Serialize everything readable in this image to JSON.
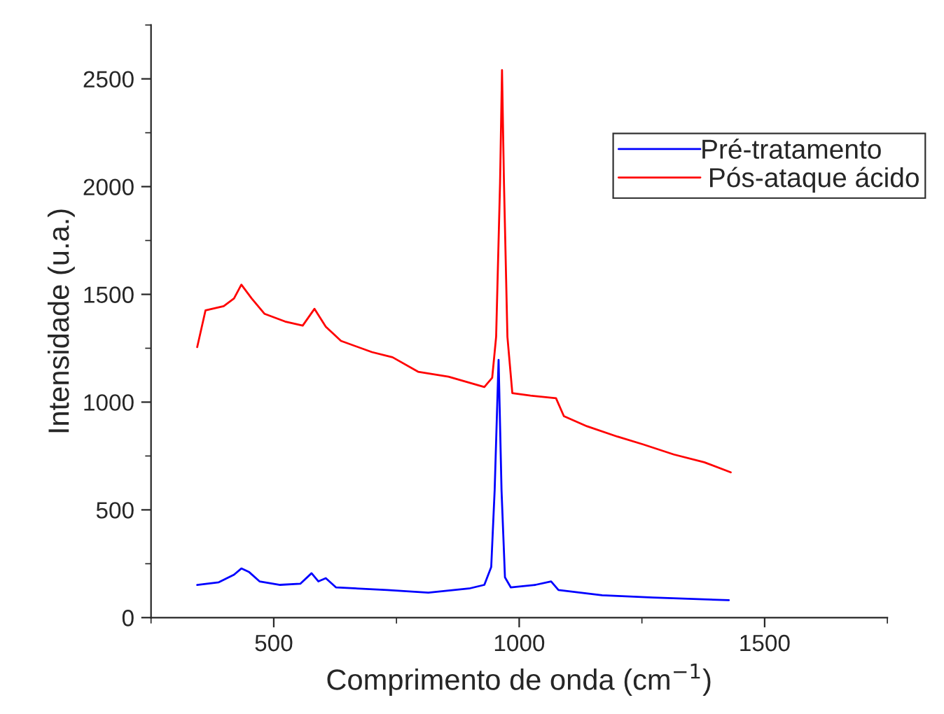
{
  "chart_data": {
    "type": "line",
    "xlabel": "Comprimento de onda (cm$^{−1}$)",
    "ylabel": "Intensidade (u.a.)",
    "xlim": [
      250,
      1750
    ],
    "xticks": [
      500,
      1000,
      1500
    ],
    "ylim": [
      0,
      2750
    ],
    "yticks": [
      0,
      500,
      1000,
      1500,
      2000,
      2500
    ],
    "grid": false,
    "legend": "top right",
    "marker": "none",
    "line_style": "solid",
    "series": [
      {
        "name": "Pré-tratamento",
        "color": "#0000ff",
        "x": [
          344,
          388,
          419,
          434,
          450,
          471,
          513,
          554,
          577,
          591,
          606,
          627,
          731,
          815,
          898,
          929,
          943,
          950,
          958,
          964,
          971,
          983,
          1033,
          1065,
          1080,
          1169,
          1273,
          1427
        ],
        "values": [
          152,
          164,
          199,
          228,
          211,
          168,
          152,
          157,
          206,
          168,
          183,
          140,
          128,
          116,
          135,
          152,
          235,
          591,
          1196,
          591,
          187,
          140,
          152,
          168,
          128,
          104,
          93,
          81
        ]
      },
      {
        "name": " Pós-ataque ácido",
        "color": "#ff0000",
        "x": [
          344,
          361,
          398,
          419,
          434,
          455,
          481,
          523,
          559,
          583,
          606,
          637,
          700,
          742,
          794,
          856,
          929,
          945,
          953,
          961,
          965,
          969,
          976,
          986,
          1023,
          1075,
          1091,
          1138,
          1200,
          1252,
          1315,
          1377,
          1431
        ],
        "values": [
          1255,
          1426,
          1445,
          1481,
          1545,
          1481,
          1410,
          1374,
          1355,
          1433,
          1350,
          1284,
          1232,
          1208,
          1141,
          1118,
          1070,
          1113,
          1303,
          2015,
          2541,
          2015,
          1303,
          1042,
          1030,
          1018,
          935,
          888,
          840,
          804,
          757,
          721,
          674
        ]
      }
    ]
  }
}
